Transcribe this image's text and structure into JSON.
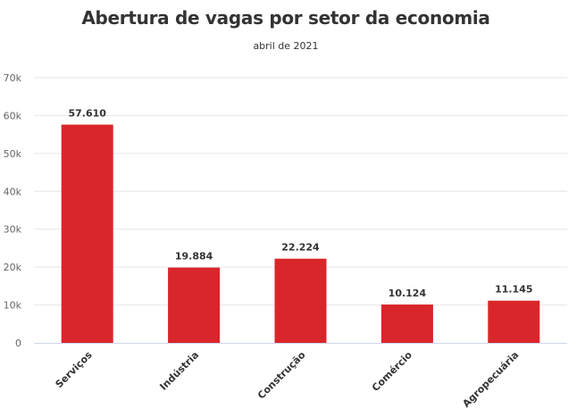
{
  "chart_data": {
    "type": "bar",
    "title": "Abertura de vagas por setor da economia",
    "subtitle": "abril de 2021",
    "categories": [
      "Serviços",
      "Indústria",
      "Construção",
      "Comércio",
      "Agropecuária"
    ],
    "values": [
      57610,
      19884,
      22224,
      10124,
      11145
    ],
    "data_labels": [
      "57.610",
      "19.884",
      "22.224",
      "10.124",
      "11.145"
    ],
    "yticks": [
      0,
      10000,
      20000,
      30000,
      40000,
      50000,
      60000,
      70000
    ],
    "ytick_labels": [
      "0",
      "10k",
      "20k",
      "30k",
      "40k",
      "50k",
      "60k",
      "70k"
    ],
    "ylim": [
      0,
      70000
    ],
    "xlabel": "",
    "ylabel": "",
    "bar_color": "#d9262a",
    "grid": true
  }
}
